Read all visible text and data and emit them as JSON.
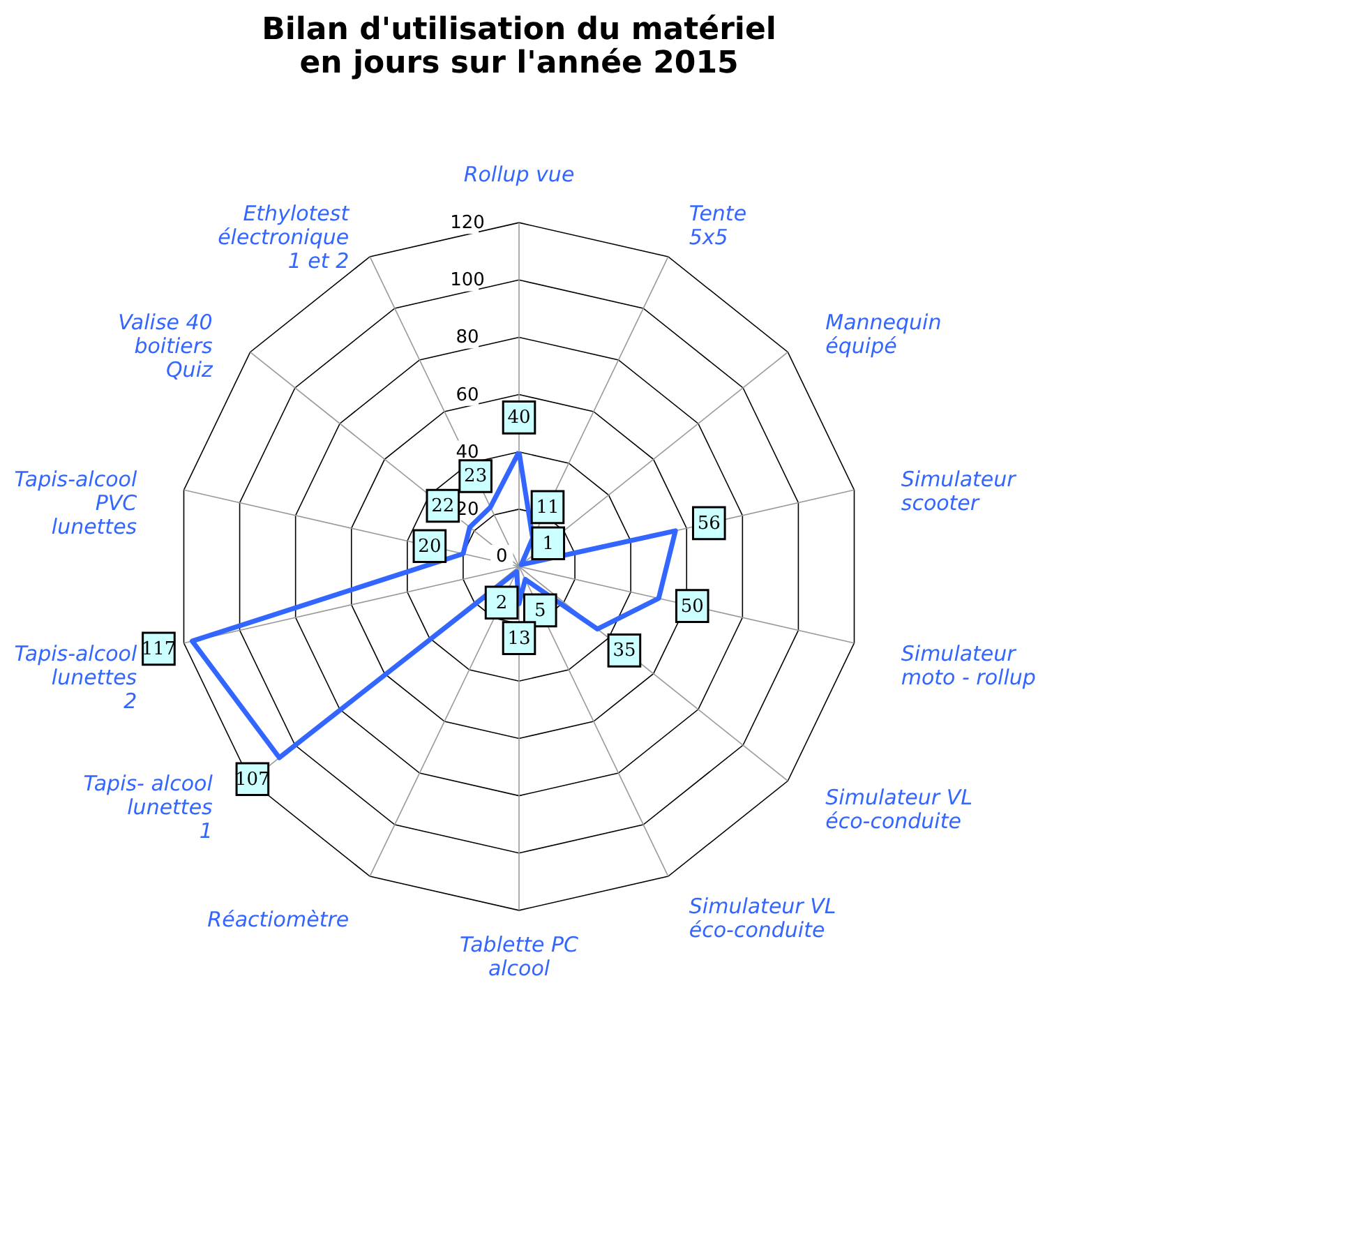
{
  "chart_data": {
    "type": "radar",
    "title": "Bilan d'utilisation du matériel\nen jours sur l'année 2015",
    "categories": [
      "Rollup vue",
      "Tente\n5x5",
      "Mannequin\néquipé",
      "Simulateur\nscooter",
      "Simulateur\nmoto - rollup",
      "Simulateur VL\néco-conduite",
      "Simulateur VL\néco-conduite",
      "Tablette PC\nalcool",
      "Réactiomètre",
      "Tapis- alcool\nlunettes\n1",
      "Tapis-alcool\nlunettes\n2",
      "Tapis-alcool\nPVC\nlunettes",
      "Valise 40\nboitiers\nQuiz",
      "Ethylotest\nélectronique\n1 et 2"
    ],
    "series": [
      {
        "color": "#3366ff",
        "values": [
          40,
          11,
          1,
          56,
          50,
          35,
          5,
          13,
          2,
          107,
          117,
          20,
          22,
          23
        ]
      }
    ],
    "ylim": [
      0,
      120
    ],
    "yticks": [
      0,
      20,
      40,
      60,
      80,
      100,
      120
    ],
    "grid": true,
    "data_labels": true,
    "legend": false
  }
}
